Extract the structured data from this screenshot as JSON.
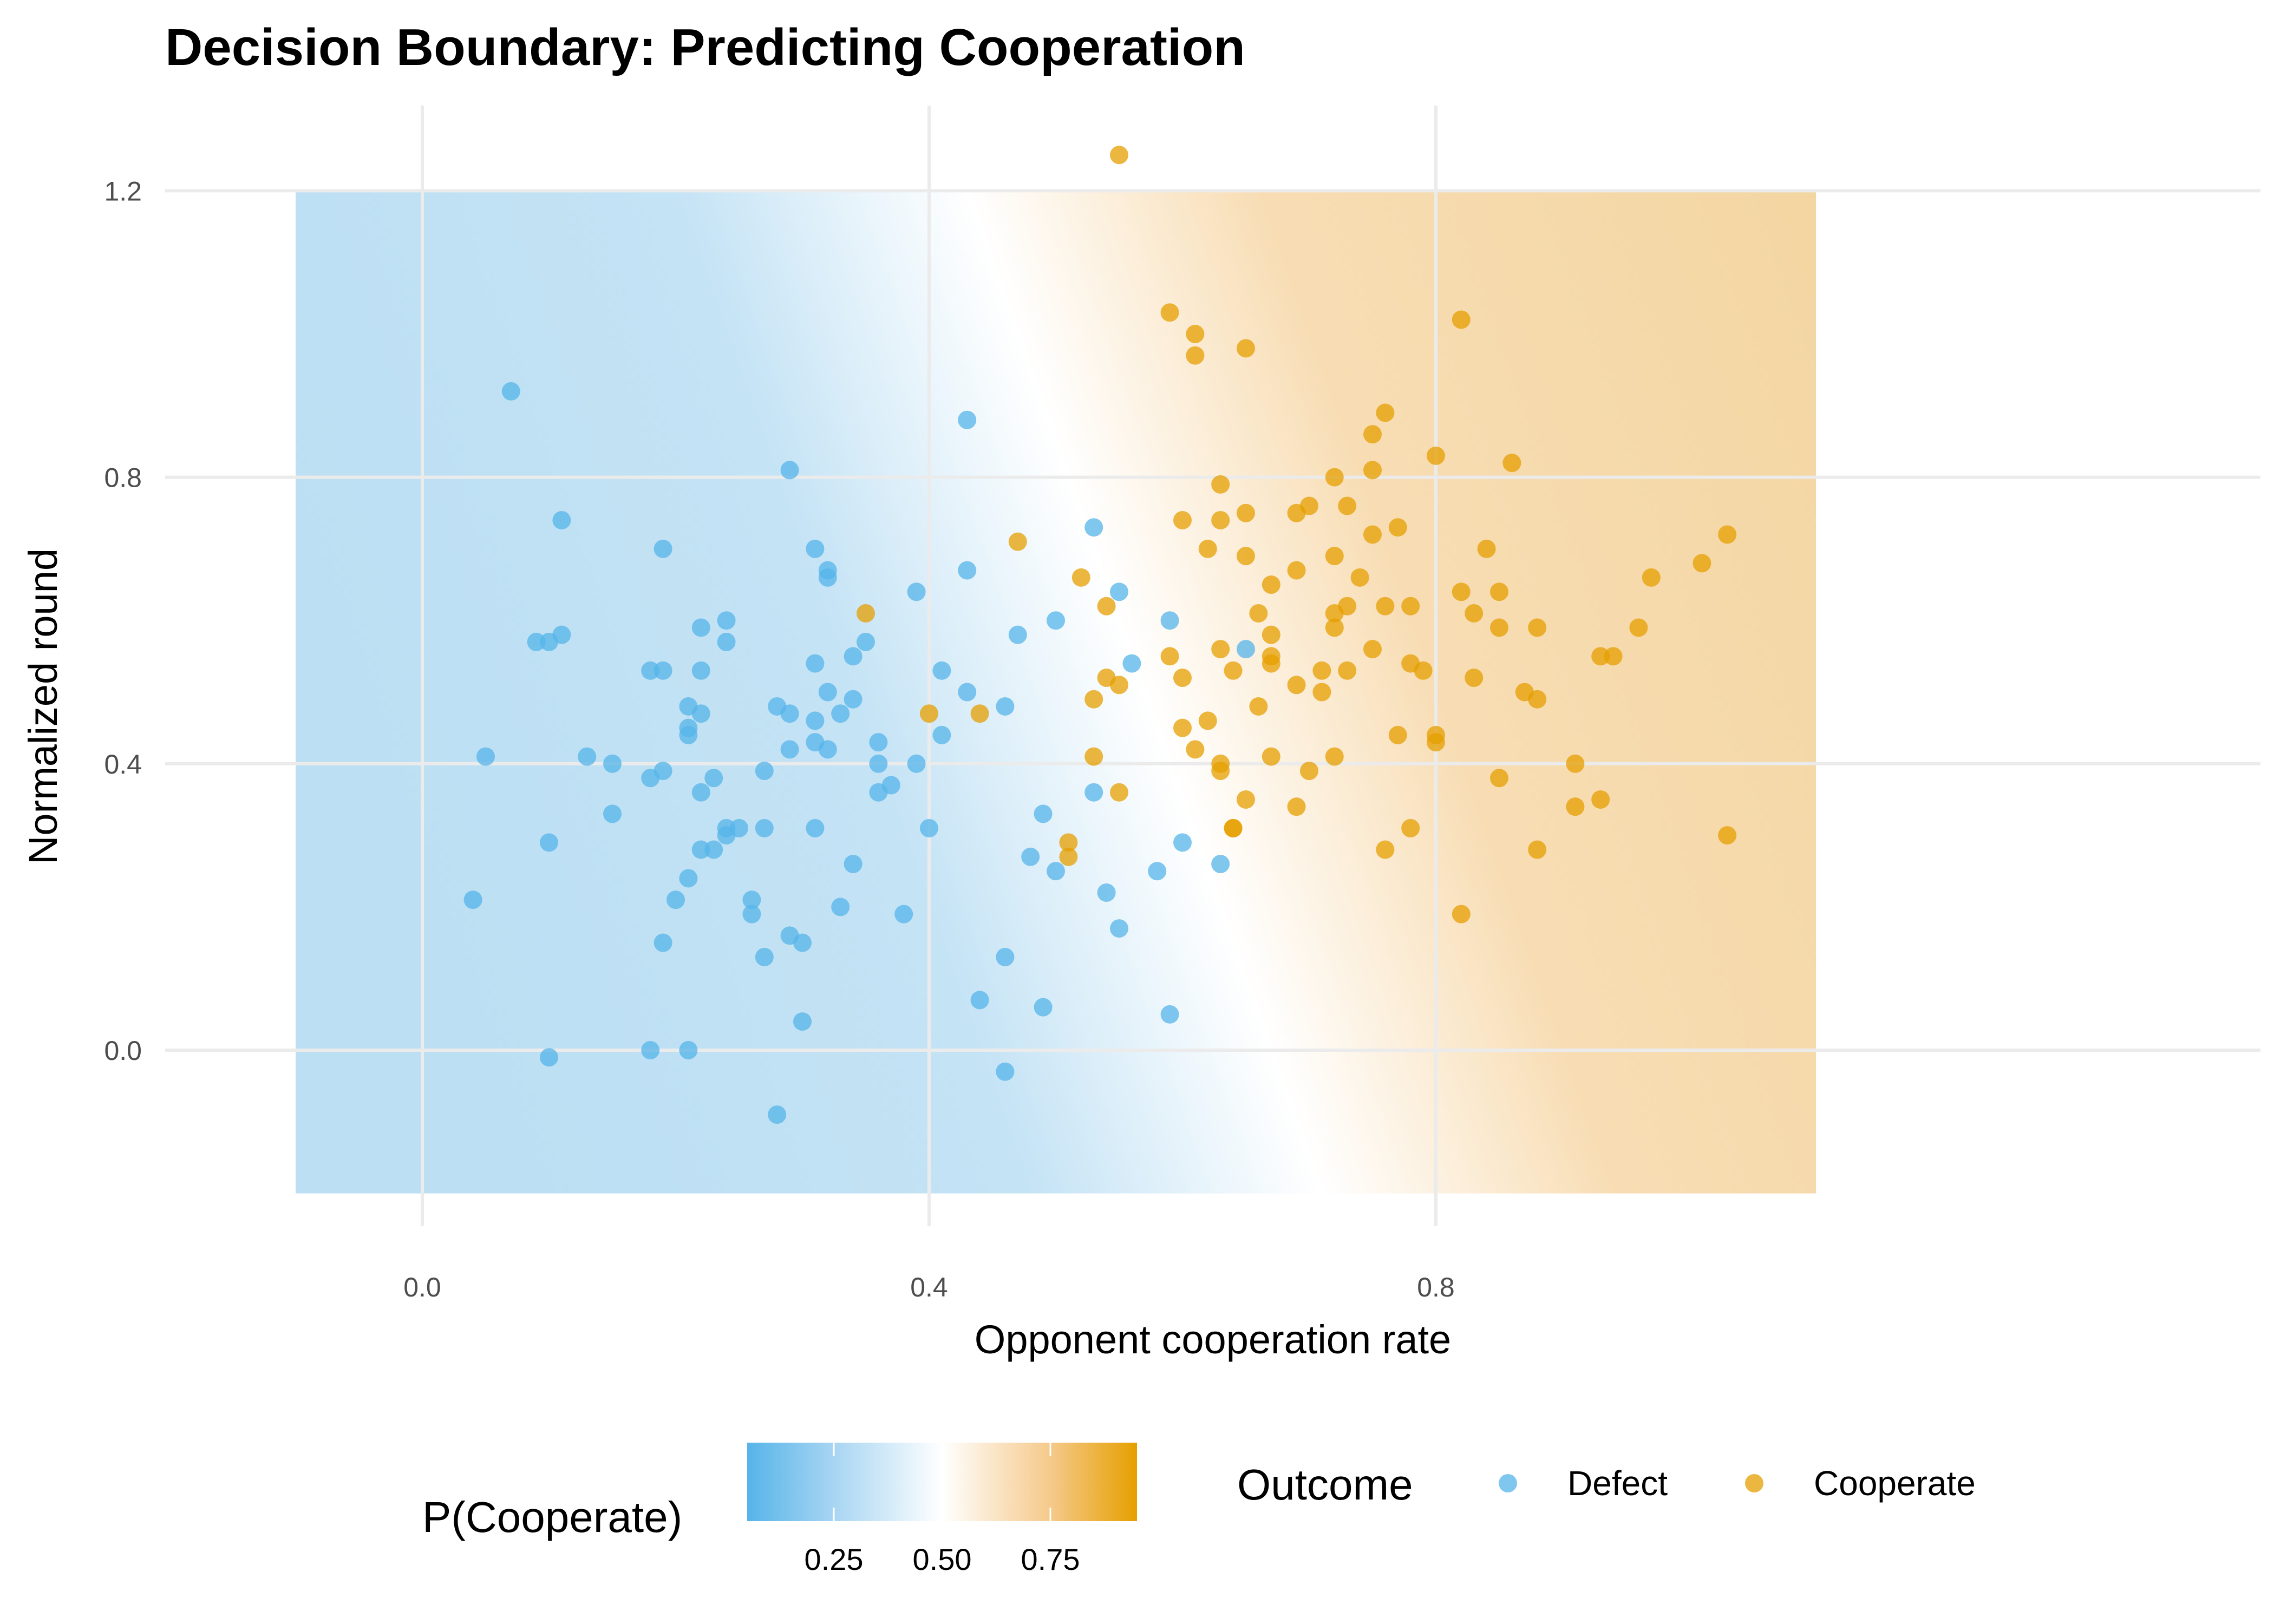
{
  "chart_data": {
    "type": "scatter",
    "title": "Decision Boundary: Predicting Cooperation",
    "xlabel": "Opponent cooperation rate",
    "ylabel": "Normalized round",
    "xlim": [
      -0.1,
      1.1
    ],
    "ylim": [
      -0.2,
      1.2
    ],
    "x_ticks": [
      "0.0",
      "0.4",
      "0.8"
    ],
    "y_ticks": [
      "0.0",
      "0.4",
      "0.8",
      "1.2"
    ],
    "grid": true,
    "background": {
      "type": "probability_surface",
      "label": "P(Cooperate)",
      "boundary_at_y": [
        {
          "y": 1.2,
          "x": 0.43
        },
        {
          "y": -0.2,
          "x": 0.71
        }
      ],
      "colorbar_ticks": [
        "0.25",
        "0.50",
        "0.75"
      ],
      "low_color": "#56B4E9",
      "high_color": "#E69F00"
    },
    "legend": {
      "title": "Outcome",
      "placement": "bottom",
      "entries": [
        "Defect",
        "Cooperate"
      ]
    },
    "series": [
      {
        "name": "Defect",
        "color": "#56B4E9",
        "points": [
          [
            0.07,
            0.92
          ],
          [
            0.29,
            0.81
          ],
          [
            0.43,
            0.88
          ],
          [
            0.11,
            0.74
          ],
          [
            0.19,
            0.7
          ],
          [
            0.31,
            0.7
          ],
          [
            0.32,
            0.67
          ],
          [
            0.32,
            0.66
          ],
          [
            0.43,
            0.67
          ],
          [
            0.39,
            0.64
          ],
          [
            0.55,
            0.64
          ],
          [
            0.53,
            0.73
          ],
          [
            0.59,
            0.6
          ],
          [
            0.5,
            0.6
          ],
          [
            0.24,
            0.6
          ],
          [
            0.22,
            0.59
          ],
          [
            0.24,
            0.57
          ],
          [
            0.09,
            0.57
          ],
          [
            0.1,
            0.57
          ],
          [
            0.11,
            0.58
          ],
          [
            0.35,
            0.57
          ],
          [
            0.34,
            0.55
          ],
          [
            0.47,
            0.58
          ],
          [
            0.65,
            0.56
          ],
          [
            0.56,
            0.54
          ],
          [
            0.31,
            0.54
          ],
          [
            0.18,
            0.53
          ],
          [
            0.19,
            0.53
          ],
          [
            0.22,
            0.53
          ],
          [
            0.41,
            0.53
          ],
          [
            0.32,
            0.5
          ],
          [
            0.34,
            0.49
          ],
          [
            0.43,
            0.5
          ],
          [
            0.46,
            0.48
          ],
          [
            0.28,
            0.48
          ],
          [
            0.29,
            0.47
          ],
          [
            0.21,
            0.48
          ],
          [
            0.22,
            0.47
          ],
          [
            0.33,
            0.47
          ],
          [
            0.31,
            0.46
          ],
          [
            0.21,
            0.45
          ],
          [
            0.21,
            0.44
          ],
          [
            0.41,
            0.44
          ],
          [
            0.36,
            0.43
          ],
          [
            0.31,
            0.43
          ],
          [
            0.32,
            0.42
          ],
          [
            0.29,
            0.42
          ],
          [
            0.05,
            0.41
          ],
          [
            0.13,
            0.41
          ],
          [
            0.15,
            0.4
          ],
          [
            0.36,
            0.4
          ],
          [
            0.39,
            0.4
          ],
          [
            0.27,
            0.39
          ],
          [
            0.19,
            0.39
          ],
          [
            0.18,
            0.38
          ],
          [
            0.23,
            0.38
          ],
          [
            0.37,
            0.37
          ],
          [
            0.36,
            0.36
          ],
          [
            0.22,
            0.36
          ],
          [
            0.53,
            0.36
          ],
          [
            0.15,
            0.33
          ],
          [
            0.49,
            0.33
          ],
          [
            0.24,
            0.31
          ],
          [
            0.25,
            0.31
          ],
          [
            0.27,
            0.31
          ],
          [
            0.31,
            0.31
          ],
          [
            0.4,
            0.31
          ],
          [
            0.24,
            0.3
          ],
          [
            0.1,
            0.29
          ],
          [
            0.22,
            0.28
          ],
          [
            0.23,
            0.28
          ],
          [
            0.6,
            0.29
          ],
          [
            0.48,
            0.27
          ],
          [
            0.63,
            0.26
          ],
          [
            0.34,
            0.26
          ],
          [
            0.5,
            0.25
          ],
          [
            0.58,
            0.25
          ],
          [
            0.21,
            0.24
          ],
          [
            0.54,
            0.22
          ],
          [
            0.04,
            0.21
          ],
          [
            0.2,
            0.21
          ],
          [
            0.26,
            0.21
          ],
          [
            0.33,
            0.2
          ],
          [
            0.26,
            0.19
          ],
          [
            0.38,
            0.19
          ],
          [
            0.55,
            0.17
          ],
          [
            0.29,
            0.16
          ],
          [
            0.19,
            0.15
          ],
          [
            0.3,
            0.15
          ],
          [
            0.46,
            0.13
          ],
          [
            0.27,
            0.13
          ],
          [
            0.44,
            0.07
          ],
          [
            0.49,
            0.06
          ],
          [
            0.59,
            0.05
          ],
          [
            0.3,
            0.04
          ],
          [
            0.18,
            0.0
          ],
          [
            0.21,
            0.0
          ],
          [
            0.1,
            -0.01
          ],
          [
            0.46,
            -0.03
          ],
          [
            0.28,
            -0.09
          ]
        ]
      },
      {
        "name": "Cooperate",
        "color": "#E69F00",
        "points": [
          [
            0.55,
            1.25
          ],
          [
            0.59,
            1.03
          ],
          [
            0.61,
            1.0
          ],
          [
            0.82,
            1.02
          ],
          [
            0.61,
            0.97
          ],
          [
            0.65,
            0.98
          ],
          [
            0.76,
            0.89
          ],
          [
            0.75,
            0.86
          ],
          [
            0.8,
            0.83
          ],
          [
            0.86,
            0.82
          ],
          [
            0.75,
            0.81
          ],
          [
            0.72,
            0.8
          ],
          [
            0.63,
            0.79
          ],
          [
            0.73,
            0.76
          ],
          [
            0.65,
            0.75
          ],
          [
            0.69,
            0.75
          ],
          [
            0.7,
            0.76
          ],
          [
            0.6,
            0.74
          ],
          [
            0.63,
            0.74
          ],
          [
            0.75,
            0.72
          ],
          [
            0.77,
            0.73
          ],
          [
            1.03,
            0.72
          ],
          [
            0.47,
            0.71
          ],
          [
            0.62,
            0.7
          ],
          [
            0.84,
            0.7
          ],
          [
            0.65,
            0.69
          ],
          [
            0.72,
            0.69
          ],
          [
            0.52,
            0.66
          ],
          [
            0.69,
            0.67
          ],
          [
            0.74,
            0.66
          ],
          [
            1.01,
            0.68
          ],
          [
            0.97,
            0.66
          ],
          [
            0.67,
            0.65
          ],
          [
            0.82,
            0.64
          ],
          [
            0.85,
            0.64
          ],
          [
            0.54,
            0.62
          ],
          [
            0.35,
            0.61
          ],
          [
            0.66,
            0.61
          ],
          [
            0.72,
            0.61
          ],
          [
            0.73,
            0.62
          ],
          [
            0.76,
            0.62
          ],
          [
            0.78,
            0.62
          ],
          [
            0.83,
            0.61
          ],
          [
            0.85,
            0.59
          ],
          [
            0.88,
            0.59
          ],
          [
            0.96,
            0.59
          ],
          [
            0.72,
            0.59
          ],
          [
            0.67,
            0.58
          ],
          [
            0.63,
            0.56
          ],
          [
            0.75,
            0.56
          ],
          [
            0.67,
            0.55
          ],
          [
            0.67,
            0.54
          ],
          [
            0.59,
            0.55
          ],
          [
            0.94,
            0.55
          ],
          [
            0.93,
            0.55
          ],
          [
            0.78,
            0.54
          ],
          [
            0.79,
            0.53
          ],
          [
            0.64,
            0.53
          ],
          [
            0.71,
            0.53
          ],
          [
            0.73,
            0.53
          ],
          [
            0.6,
            0.52
          ],
          [
            0.54,
            0.52
          ],
          [
            0.83,
            0.52
          ],
          [
            0.55,
            0.51
          ],
          [
            0.69,
            0.51
          ],
          [
            0.71,
            0.5
          ],
          [
            0.87,
            0.5
          ],
          [
            0.53,
            0.49
          ],
          [
            0.88,
            0.49
          ],
          [
            0.66,
            0.48
          ],
          [
            0.4,
            0.47
          ],
          [
            0.44,
            0.47
          ],
          [
            0.62,
            0.46
          ],
          [
            0.6,
            0.45
          ],
          [
            0.77,
            0.44
          ],
          [
            0.8,
            0.43
          ],
          [
            0.8,
            0.44
          ],
          [
            0.61,
            0.42
          ],
          [
            0.53,
            0.41
          ],
          [
            0.67,
            0.41
          ],
          [
            0.72,
            0.41
          ],
          [
            0.91,
            0.4
          ],
          [
            0.63,
            0.4
          ],
          [
            0.63,
            0.39
          ],
          [
            0.7,
            0.39
          ],
          [
            0.85,
            0.38
          ],
          [
            0.55,
            0.36
          ],
          [
            0.65,
            0.35
          ],
          [
            0.69,
            0.34
          ],
          [
            0.93,
            0.35
          ],
          [
            0.91,
            0.34
          ],
          [
            0.64,
            0.31
          ],
          [
            0.64,
            0.31
          ],
          [
            0.78,
            0.31
          ],
          [
            1.03,
            0.3
          ],
          [
            0.51,
            0.29
          ],
          [
            0.51,
            0.27
          ],
          [
            0.76,
            0.28
          ],
          [
            0.88,
            0.28
          ],
          [
            0.82,
            0.19
          ]
        ]
      }
    ]
  }
}
